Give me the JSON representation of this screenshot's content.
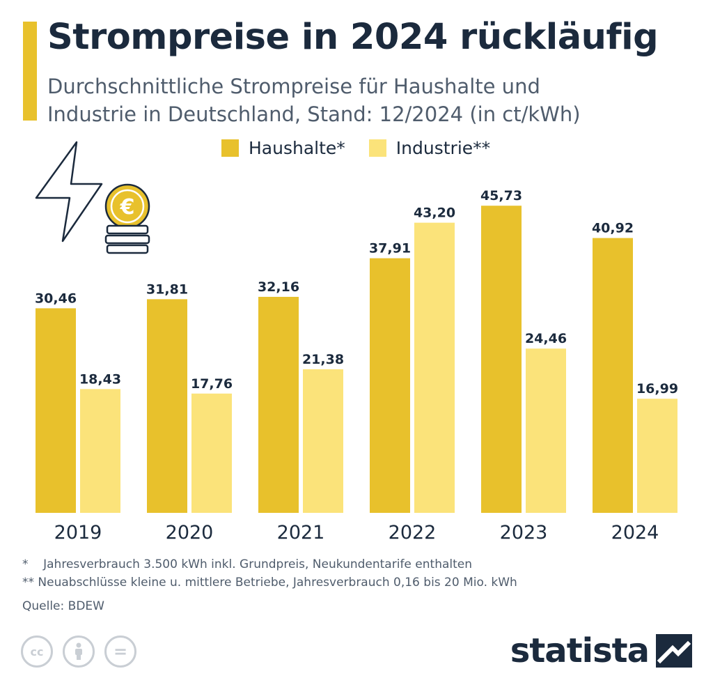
{
  "header": {
    "title": "Strompreise in 2024 rückläufig",
    "subtitle_line1": "Durchschnittliche Strompreise für Haushalte und",
    "subtitle_line2": "Industrie in Deutschland, Stand: 12/2024 (in ct/kWh)"
  },
  "legend": {
    "haushalte": "Haushalte*",
    "industrie": "Industrie**"
  },
  "colors": {
    "haushalte": "#e8c12c",
    "industrie": "#fbe37a",
    "accent": "#e8c12c",
    "navy": "#1b2a3d"
  },
  "chart_data": {
    "type": "bar",
    "title": "Strompreise in 2024 rückläufig",
    "subtitle": "Durchschnittliche Strompreise für Haushalte und Industrie in Deutschland, Stand: 12/2024 (in ct/kWh)",
    "categories": [
      "2019",
      "2020",
      "2021",
      "2022",
      "2023",
      "2024"
    ],
    "series": [
      {
        "name": "Haushalte*",
        "values": [
          30.46,
          31.81,
          32.16,
          37.91,
          45.73,
          40.92
        ],
        "labels": [
          "30,46",
          "31,81",
          "32,16",
          "37,91",
          "45,73",
          "40,92"
        ]
      },
      {
        "name": "Industrie**",
        "values": [
          18.43,
          17.76,
          21.38,
          43.2,
          24.46,
          16.99
        ],
        "labels": [
          "18,43",
          "17,76",
          "21,38",
          "43,20",
          "24,46",
          "16,99"
        ]
      }
    ],
    "ylim": [
      0,
      50
    ],
    "grid": false,
    "legend_position": "top-center"
  },
  "footnotes": {
    "note1_marker": "*",
    "note1_text": "Jahresverbrauch 3.500 kWh inkl. Grundpreis, Neukundentarife enthalten",
    "note2_marker": "**",
    "note2_text": "Neuabschlüsse kleine u. mittlere Betriebe, Jahresverbrauch 0,16 bis 20 Mio. kWh",
    "source": "Quelle: BDEW"
  },
  "branding": {
    "logo_text": "statista",
    "cc_icons": [
      "cc-icon",
      "by-person-icon",
      "nd-equal-icon"
    ],
    "cc_label": "cc",
    "nd_label": "="
  },
  "icons": {
    "lightning": "lightning-bolt-icon",
    "coins": "euro-coin-stack-icon"
  }
}
